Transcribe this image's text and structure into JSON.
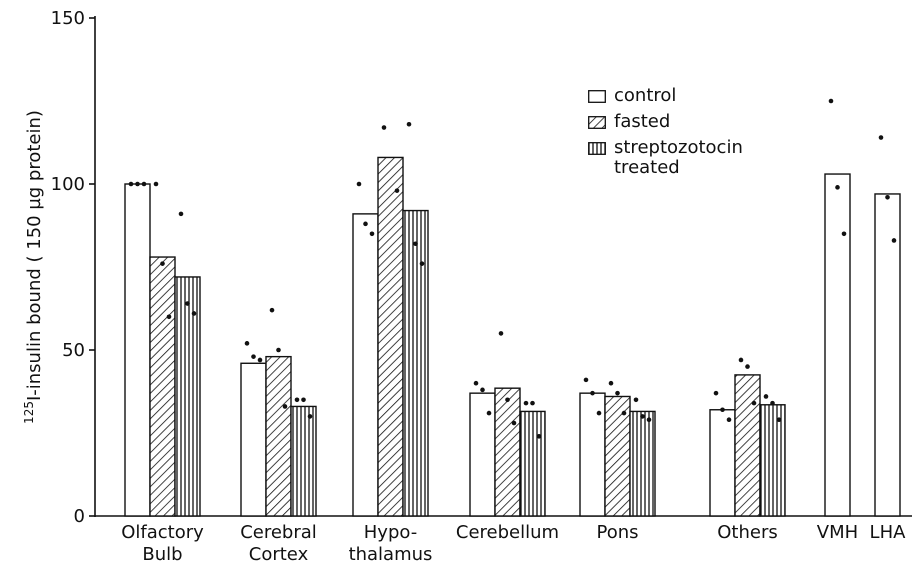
{
  "chart_data": {
    "type": "bar",
    "y_label": {
      "sup": "125",
      "text": "I-insulin bound ( 150 µg protein)"
    },
    "categories": [
      [
        "Olfactory",
        "Bulb"
      ],
      [
        "Cerebral",
        "Cortex"
      ],
      [
        "Hypo-",
        "thalamus"
      ],
      [
        "Cerebellum"
      ],
      [
        "Pons"
      ],
      [
        "Others"
      ],
      [
        "VMH"
      ],
      [
        "LHA"
      ]
    ],
    "series": [
      {
        "name": "control",
        "color": "#ffffff",
        "hatch": "none",
        "values": [
          100,
          46,
          91,
          37,
          37,
          32,
          103,
          97
        ],
        "points": [
          [
            100,
            100,
            100
          ],
          [
            52,
            48,
            47
          ],
          [
            100,
            88,
            85
          ],
          [
            40,
            38,
            31
          ],
          [
            41,
            37,
            31
          ],
          [
            37,
            32,
            29
          ],
          [
            125,
            99,
            85
          ],
          [
            114,
            96,
            83
          ]
        ]
      },
      {
        "name": "fasted",
        "color": "#ffffff",
        "hatch": "diagonal",
        "values": [
          78,
          48,
          108,
          38.5,
          36,
          42.5,
          null,
          null
        ],
        "points": [
          [
            100,
            76,
            60
          ],
          [
            62,
            50,
            33
          ],
          [
            117,
            98
          ],
          [
            55,
            35,
            28
          ],
          [
            40,
            37,
            31
          ],
          [
            47,
            45,
            34
          ],
          null,
          null
        ]
      },
      {
        "name": "streptozotocin treated",
        "color": "#ffffff",
        "hatch": "vertical",
        "values": [
          72,
          33,
          92,
          31.5,
          31.5,
          33.5,
          null,
          null
        ],
        "points": [
          [
            91,
            64,
            61
          ],
          [
            35,
            35,
            30
          ],
          [
            118,
            82,
            76
          ],
          [
            34,
            34,
            24
          ],
          [
            35,
            30,
            29
          ],
          [
            36,
            34,
            29
          ],
          null,
          null
        ]
      }
    ],
    "ylim": [
      0,
      150
    ],
    "yticks": [
      0,
      50,
      100,
      150
    ]
  }
}
